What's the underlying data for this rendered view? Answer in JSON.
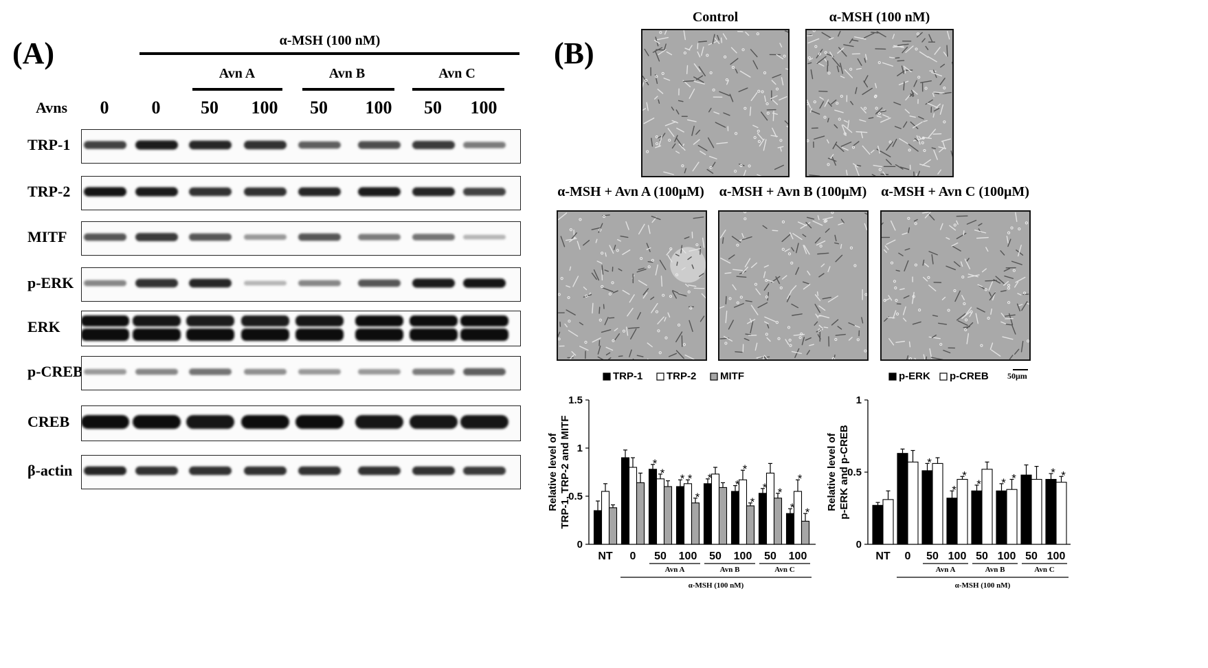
{
  "panel_a": {
    "label": "(A)",
    "treatment_header": "α-MSH (100 nM)",
    "groups": [
      "Avn A",
      "Avn B",
      "Avn C"
    ],
    "row_header": "Avns",
    "lanes": [
      "0",
      "0",
      "50",
      "100",
      "50",
      "100",
      "50",
      "100"
    ],
    "blots": [
      {
        "name": "TRP-1",
        "intensity": [
          0.7,
          0.9,
          0.85,
          0.8,
          0.55,
          0.65,
          0.75,
          0.4
        ]
      },
      {
        "name": "TRP-2",
        "intensity": [
          0.95,
          0.9,
          0.8,
          0.8,
          0.85,
          0.9,
          0.85,
          0.7
        ]
      },
      {
        "name": "MITF",
        "intensity": [
          0.6,
          0.75,
          0.6,
          0.25,
          0.6,
          0.4,
          0.45,
          0.1
        ]
      },
      {
        "name": "p-ERK",
        "intensity": [
          0.35,
          0.8,
          0.85,
          0.1,
          0.35,
          0.6,
          0.9,
          0.95
        ]
      },
      {
        "name": "ERK",
        "intensity": [
          1,
          0.95,
          0.9,
          0.9,
          0.95,
          1,
          1,
          1
        ]
      },
      {
        "name": "p-CREB",
        "intensity": [
          0.25,
          0.35,
          0.45,
          0.3,
          0.25,
          0.25,
          0.4,
          0.55
        ]
      },
      {
        "name": "CREB",
        "intensity": [
          1,
          1,
          0.95,
          1,
          1,
          0.95,
          0.95,
          0.95
        ]
      },
      {
        "name": "β-actin",
        "intensity": [
          0.85,
          0.8,
          0.8,
          0.8,
          0.8,
          0.8,
          0.8,
          0.75
        ]
      }
    ]
  },
  "panel_b": {
    "label": "(B)",
    "micrographs": [
      {
        "title": "Control"
      },
      {
        "title": "α-MSH (100 nM)"
      },
      {
        "title": "α-MSH + Avn A (100μM)"
      },
      {
        "title": "α-MSH + Avn B (100μM)"
      },
      {
        "title": "α-MSH + Avn C (100μM)"
      }
    ],
    "scale_bar_label": "50μm"
  },
  "chart_data": [
    {
      "type": "bar",
      "categories": [
        "NT",
        "0",
        "50",
        "100",
        "50",
        "100",
        "50",
        "100"
      ],
      "category_groups": [
        "Avn A",
        "Avn B",
        "Avn C"
      ],
      "bracket_label": "α-MSH (100 nM)",
      "ylabel_line1": "Relative level of",
      "ylabel_line2": "TRP-1, TRP-2 and MITF",
      "ylim": [
        0,
        1.5
      ],
      "yticks": [
        "0",
        "0.5",
        "1",
        "1.5"
      ],
      "legend_placement": "top",
      "series": [
        {
          "name": "TRP-1",
          "color": "#000000",
          "values": [
            0.35,
            0.9,
            0.78,
            0.6,
            0.63,
            0.55,
            0.53,
            0.32
          ],
          "err": [
            0.1,
            0.08,
            0.05,
            0.07,
            0.05,
            0.06,
            0.05,
            0.05
          ],
          "stars": [
            "",
            "",
            "*",
            "*",
            "*",
            "*",
            "*",
            "*"
          ]
        },
        {
          "name": "TRP-2",
          "color": "#ffffff",
          "values": [
            0.55,
            0.8,
            0.68,
            0.63,
            0.73,
            0.67,
            0.74,
            0.55
          ],
          "err": [
            0.08,
            0.1,
            0.05,
            0.04,
            0.07,
            0.1,
            0.1,
            0.12
          ],
          "stars": [
            "",
            "",
            "*",
            "*",
            "",
            "*",
            "",
            "*"
          ]
        },
        {
          "name": "MITF",
          "color": "#a6a6a6",
          "values": [
            0.38,
            0.64,
            0.6,
            0.43,
            0.59,
            0.4,
            0.48,
            0.24
          ],
          "err": [
            0.03,
            0.1,
            0.06,
            0.05,
            0.05,
            0.03,
            0.05,
            0.08
          ],
          "stars": [
            "",
            "",
            "",
            "*",
            "",
            "*",
            "*",
            "*"
          ]
        }
      ]
    },
    {
      "type": "bar",
      "categories": [
        "NT",
        "0",
        "50",
        "100",
        "50",
        "100",
        "50",
        "100"
      ],
      "category_groups": [
        "Avn A",
        "Avn B",
        "Avn C"
      ],
      "bracket_label": "α-MSH (100 nM)",
      "ylabel_line1": "Relative level of",
      "ylabel_line2": "p-ERK and p-CREB",
      "ylim": [
        0,
        1
      ],
      "yticks": [
        "0",
        "0.5",
        "1"
      ],
      "legend_placement": "top",
      "series": [
        {
          "name": "p-ERK",
          "color": "#000000",
          "values": [
            0.27,
            0.63,
            0.51,
            0.32,
            0.37,
            0.37,
            0.48,
            0.45
          ],
          "err": [
            0.02,
            0.03,
            0.05,
            0.05,
            0.04,
            0.05,
            0.07,
            0.04
          ],
          "stars": [
            "",
            "",
            "*",
            "*",
            "*",
            "*",
            "",
            "*"
          ]
        },
        {
          "name": "p-CREB",
          "color": "#ffffff",
          "values": [
            0.31,
            0.57,
            0.56,
            0.45,
            0.52,
            0.38,
            0.45,
            0.43
          ],
          "err": [
            0.06,
            0.08,
            0.04,
            0.02,
            0.05,
            0.07,
            0.09,
            0.04
          ],
          "stars": [
            "",
            "",
            "",
            "*",
            "",
            "*",
            "",
            "*"
          ]
        }
      ]
    }
  ]
}
